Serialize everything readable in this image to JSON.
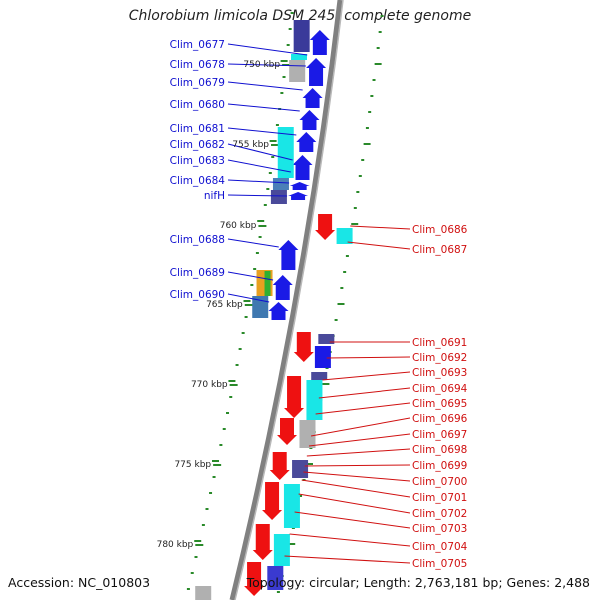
{
  "title": "Chlorobium limicola DSM 245, complete genome",
  "footer": {
    "accession": "Accession: NC_010803",
    "topology": "Topology: circular; Length: 2,763,181 bp; Genes: 2,488"
  },
  "colors": {
    "forward_label": "#1010d0",
    "reverse_label": "#d01010",
    "tick": "#2a8a2a",
    "backbone": "#808080",
    "gene_blue": "#1a1ae6",
    "gene_red": "#ee1111",
    "gene_cyan": "#19e6e6"
  },
  "scale_labels": [
    "750 kbp",
    "755 kbp",
    "760 kbp",
    "765 kbp",
    "770 kbp",
    "775 kbp",
    "780 kbp"
  ],
  "forward_genes": [
    "Clim_0677",
    "Clim_0678",
    "Clim_0679",
    "Clim_0680",
    "Clim_0681",
    "Clim_0682",
    "Clim_0683",
    "Clim_0684",
    "nifH",
    "Clim_0688",
    "Clim_0689",
    "Clim_0690"
  ],
  "reverse_genes": [
    "Clim_0686",
    "Clim_0687",
    "Clim_0691",
    "Clim_0692",
    "Clim_0693",
    "Clim_0694",
    "Clim_0695",
    "Clim_0696",
    "Clim_0697",
    "Clim_0698",
    "Clim_0699",
    "Clim_0700",
    "Clim_0701",
    "Clim_0702",
    "Clim_0703",
    "Clim_0704",
    "Clim_0705"
  ]
}
